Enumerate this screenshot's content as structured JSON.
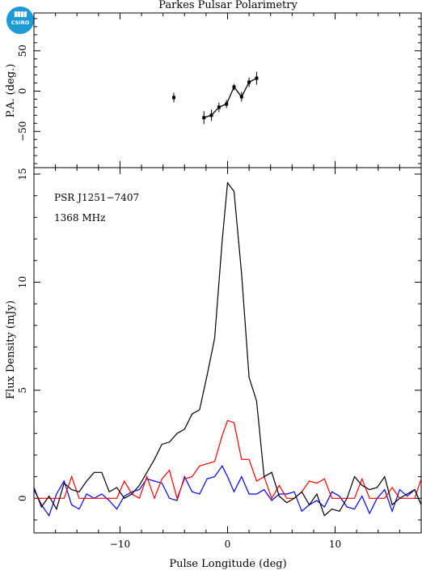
{
  "title": "Parkes Pulsar Polarimetry",
  "logo_text": "CSIRO",
  "colors": {
    "total": "#000000",
    "linear": "#ff0000",
    "circular": "#0000ff",
    "logo": "#1e9bd7"
  },
  "chart_data": [
    {
      "type": "scatter",
      "panel": "top",
      "ylabel": "P.A. (deg.)",
      "xlim": [
        -18,
        18
      ],
      "ylim": [
        -95,
        97
      ],
      "yticks": [
        -50,
        0,
        50
      ],
      "grid": false,
      "points": [
        {
          "x": -5.0,
          "y": -8,
          "err": 6
        },
        {
          "x": -2.2,
          "y": -33,
          "err": 8
        },
        {
          "x": -1.5,
          "y": -30,
          "err": 7
        },
        {
          "x": -0.8,
          "y": -20,
          "err": 6
        },
        {
          "x": -0.1,
          "y": -16,
          "err": 5
        },
        {
          "x": 0.6,
          "y": 5,
          "err": 4
        },
        {
          "x": 1.3,
          "y": -7,
          "err": 6
        },
        {
          "x": 2.0,
          "y": 11,
          "err": 6
        },
        {
          "x": 2.7,
          "y": 16,
          "err": 8
        }
      ],
      "connected_from_index": 1
    },
    {
      "type": "line",
      "panel": "bottom",
      "xlabel": "Pulse Longitude (deg)",
      "ylabel": "Flux Density (mJy)",
      "annotations": [
        "PSR J1251−7407",
        "1368 MHz"
      ],
      "xlim": [
        -18,
        18
      ],
      "ylim": [
        -1.6,
        15.3
      ],
      "xticks": [
        -10,
        0,
        10
      ],
      "yticks": [
        0,
        5,
        10,
        15
      ],
      "grid": false,
      "x": [
        -18.0,
        -17.3,
        -16.6,
        -15.9,
        -15.2,
        -14.5,
        -13.8,
        -13.1,
        -12.4,
        -11.7,
        -11.0,
        -10.3,
        -9.6,
        -8.9,
        -8.2,
        -7.5,
        -6.8,
        -6.1,
        -5.4,
        -4.7,
        -4.0,
        -3.3,
        -2.6,
        -1.9,
        -1.2,
        -0.5,
        0.0,
        0.6,
        1.3,
        2.0,
        2.7,
        3.4,
        4.1,
        4.8,
        5.5,
        6.2,
        6.9,
        7.6,
        8.3,
        9.0,
        9.7,
        10.4,
        11.1,
        11.8,
        12.5,
        13.2,
        13.9,
        14.6,
        15.3,
        16.0,
        16.7,
        17.4,
        18.0
      ],
      "series": [
        {
          "color": "#000000",
          "values": [
            0.5,
            -0.4,
            0.1,
            -0.5,
            0.7,
            0.4,
            0.3,
            0.8,
            1.2,
            1.2,
            0.3,
            0.5,
            0.0,
            0.2,
            0.6,
            1.2,
            1.8,
            2.5,
            2.6,
            3.0,
            3.2,
            3.9,
            4.1,
            5.7,
            7.4,
            11.9,
            14.6,
            14.2,
            10.4,
            5.6,
            4.5,
            1.0,
            1.2,
            0.1,
            -0.2,
            0.0,
            0.3,
            -0.3,
            0.2,
            -0.8,
            -0.5,
            -0.6,
            0.0,
            1.0,
            0.6,
            0.4,
            0.5,
            1.0,
            -0.3,
            0.0,
            0.2,
            0.4,
            -0.3
          ]
        },
        {
          "color": "#ff0000",
          "values": [
            0.0,
            0.0,
            0.0,
            0.0,
            0.0,
            1.0,
            0.0,
            0.0,
            0.0,
            0.0,
            0.0,
            0.0,
            0.8,
            0.2,
            0.0,
            1.0,
            0.0,
            0.9,
            1.3,
            0.0,
            0.9,
            1.0,
            1.5,
            1.6,
            1.7,
            2.9,
            3.6,
            3.5,
            1.8,
            1.8,
            0.8,
            1.0,
            0.0,
            0.6,
            0.0,
            0.0,
            0.3,
            0.8,
            0.7,
            0.9,
            0.0,
            0.0,
            0.0,
            0.0,
            0.9,
            0.0,
            0.0,
            0.0,
            0.5,
            0.0,
            0.0,
            0.0,
            0.9
          ]
        },
        {
          "color": "#0000ff",
          "values": [
            0.4,
            -0.3,
            -0.8,
            0.2,
            0.8,
            -0.3,
            -0.5,
            0.2,
            0.0,
            0.2,
            -0.1,
            -0.5,
            0.1,
            0.3,
            0.4,
            0.9,
            0.8,
            0.7,
            0.0,
            -0.1,
            1.0,
            0.3,
            0.2,
            0.9,
            1.0,
            1.5,
            1.0,
            0.3,
            1.0,
            0.2,
            0.2,
            0.4,
            -0.1,
            0.2,
            0.2,
            0.3,
            -0.6,
            -0.3,
            -0.1,
            -0.4,
            0.3,
            0.1,
            -0.4,
            -0.5,
            0.1,
            -0.7,
            0.0,
            0.4,
            -0.6,
            0.4,
            0.1,
            0.4,
            -0.3
          ]
        }
      ]
    }
  ]
}
